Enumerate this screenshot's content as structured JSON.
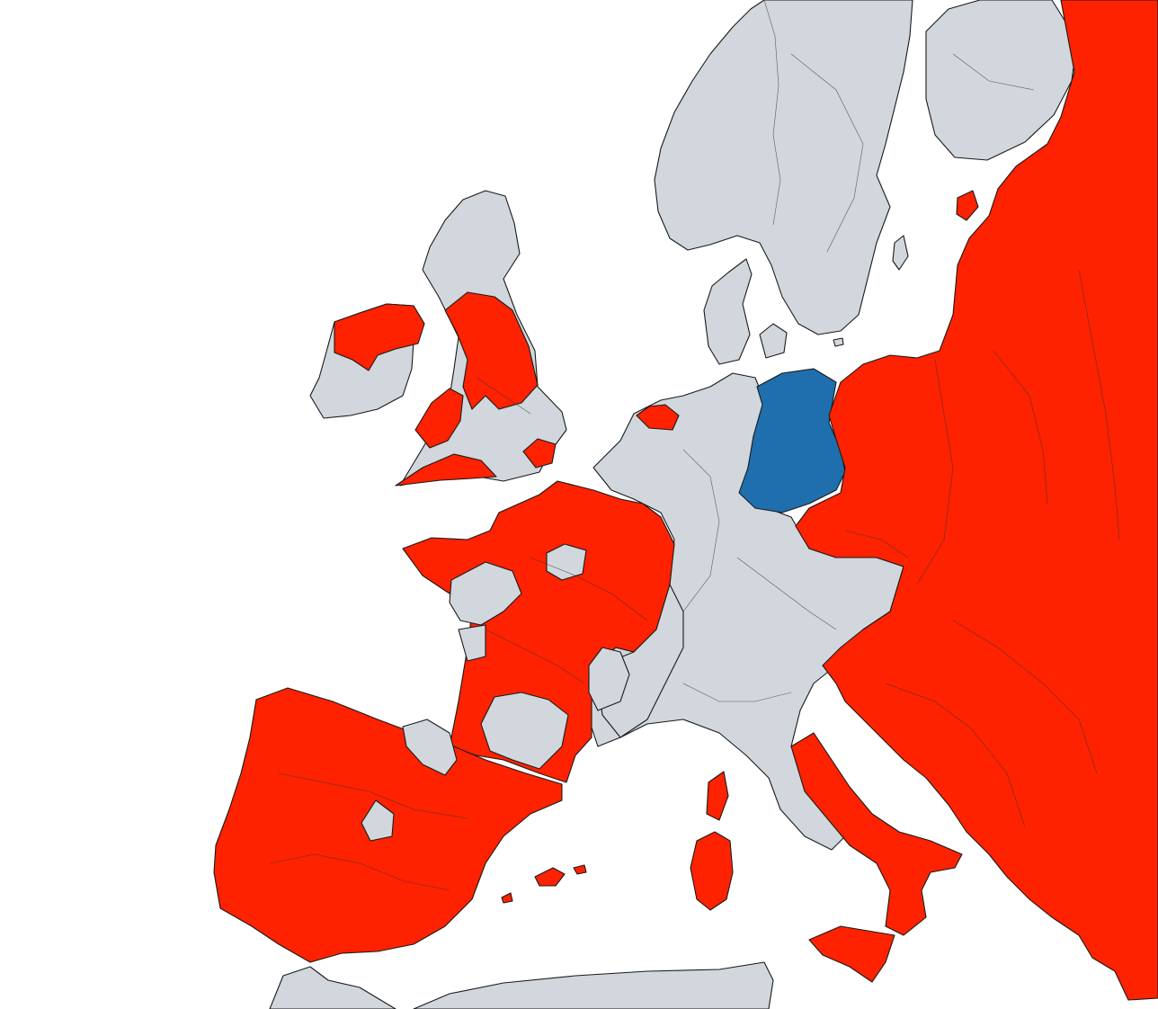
{
  "map": {
    "type": "choropleth",
    "subject": "regions-of-europe",
    "colors": {
      "sea": "#ffffff",
      "red": "#ff2200",
      "grey": "#d1d7dc",
      "blue": "#1f6fae",
      "border": "#1a1a1a"
    },
    "regions": [
      {
        "id": "iberia",
        "category": "red"
      },
      {
        "id": "basque-navarre",
        "category": "grey"
      },
      {
        "id": "madrid",
        "category": "grey"
      },
      {
        "id": "france-red",
        "category": "red"
      },
      {
        "id": "brittany-west",
        "category": "red"
      },
      {
        "id": "france-grey-east",
        "category": "grey"
      },
      {
        "id": "auvergne",
        "category": "grey"
      },
      {
        "id": "occitanie",
        "category": "grey"
      },
      {
        "id": "ile-de-france",
        "category": "grey"
      },
      {
        "id": "loire-centre",
        "category": "grey"
      },
      {
        "id": "poitou",
        "category": "grey"
      },
      {
        "id": "great-britain",
        "category": "grey"
      },
      {
        "id": "northern-england",
        "category": "red"
      },
      {
        "id": "wales",
        "category": "red"
      },
      {
        "id": "south-west-england",
        "category": "red"
      },
      {
        "id": "london-kent",
        "category": "red"
      },
      {
        "id": "ireland",
        "category": "grey"
      },
      {
        "id": "ulster-west-ireland",
        "category": "red"
      },
      {
        "id": "benelux-west-germany-alps-italy",
        "category": "grey"
      },
      {
        "id": "north-holland",
        "category": "red"
      },
      {
        "id": "east-germany",
        "category": "blue"
      },
      {
        "id": "scandinavia",
        "category": "grey"
      },
      {
        "id": "finland",
        "category": "grey"
      },
      {
        "id": "eastern-europe",
        "category": "red"
      },
      {
        "id": "southern-italy",
        "category": "red"
      },
      {
        "id": "sicily",
        "category": "red"
      },
      {
        "id": "sardinia",
        "category": "red"
      },
      {
        "id": "corsica",
        "category": "red"
      },
      {
        "id": "balearics",
        "category": "red"
      },
      {
        "id": "north-africa",
        "category": "grey"
      }
    ]
  }
}
